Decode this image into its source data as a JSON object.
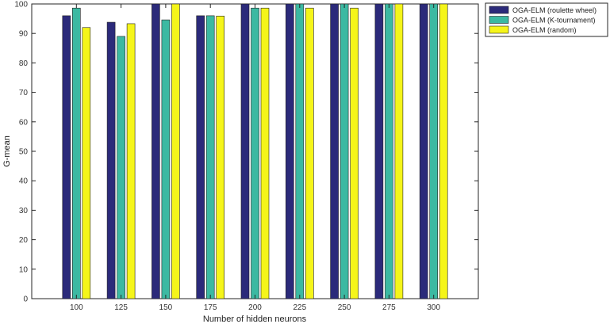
{
  "chart_data": {
    "type": "bar",
    "categories": [
      "100",
      "125",
      "150",
      "175",
      "200",
      "225",
      "250",
      "275",
      "300"
    ],
    "series": [
      {
        "name": "OGA-ELM (roulette wheel)",
        "color": "#2b2a7a",
        "values": [
          96,
          93.8,
          100,
          96,
          100,
          100,
          100,
          100,
          100
        ]
      },
      {
        "name": "OGA-ELM (K-tournament)",
        "color": "#3cb9a2",
        "values": [
          98.6,
          89,
          94.6,
          96,
          98.6,
          100,
          100,
          100,
          100
        ]
      },
      {
        "name": "OGA-ELM (random)",
        "color": "#f5f51a",
        "values": [
          92,
          93.3,
          100,
          95.9,
          98.6,
          98.6,
          98.6,
          100,
          100
        ]
      }
    ],
    "xlabel": "Number of hidden neurons",
    "ylabel": "G-mean",
    "ylim": [
      0,
      100
    ],
    "yticks": [
      0,
      10,
      20,
      30,
      40,
      50,
      60,
      70,
      80,
      90,
      100
    ],
    "grid": false,
    "legend_position": "top-right outside"
  }
}
